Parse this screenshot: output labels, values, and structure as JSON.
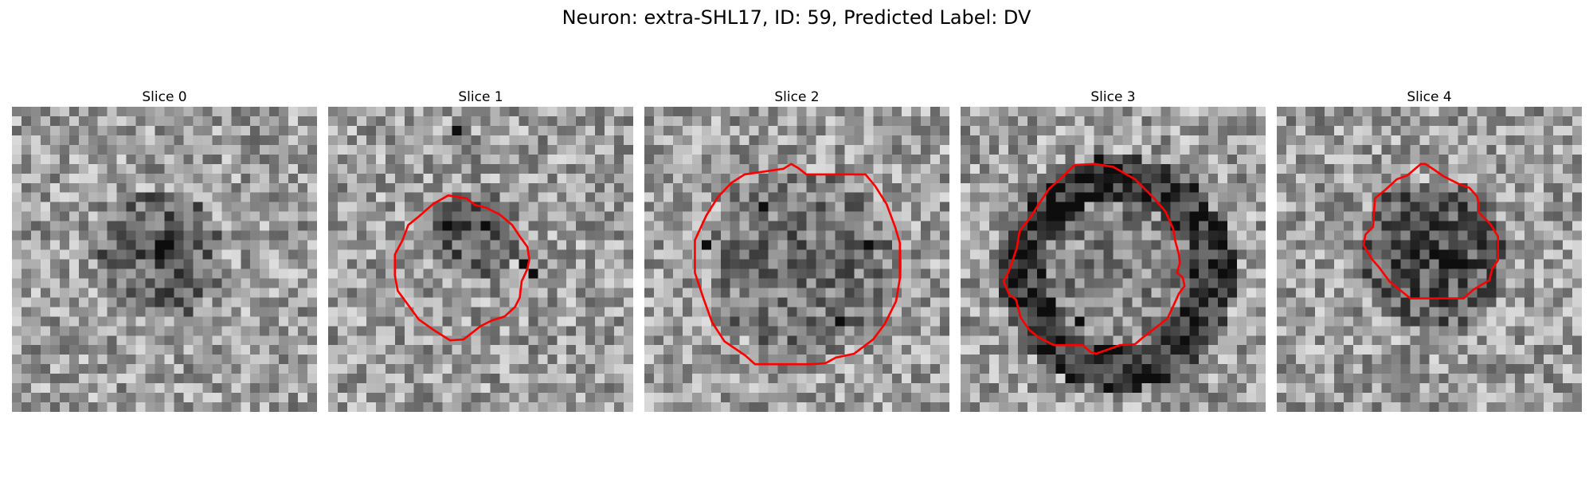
{
  "figure": {
    "title": "Neuron: extra-SHL17, ID: 59, Predicted Label: DV"
  },
  "grid_size": 32,
  "contour_color": "#ff0000",
  "panels": [
    {
      "title": "Slice 0",
      "seed": 11,
      "blob": {
        "cx": 15,
        "cy": 15,
        "r": 7,
        "depth": 0.28,
        "ring": false
      },
      "dark_pixels": [
        [
          15,
          14
        ],
        [
          16,
          14
        ],
        [
          15,
          15
        ]
      ],
      "contour": []
    },
    {
      "title": "Slice 1",
      "seed": 23,
      "blob": {
        "cx": 15,
        "cy": 13,
        "r": 5,
        "depth": 0.28,
        "ring": false
      },
      "dark_pixels": [
        [
          21,
          17
        ],
        [
          20,
          16
        ],
        [
          16,
          12
        ],
        [
          13,
          2
        ],
        [
          12,
          12
        ]
      ],
      "contour": [
        [
          12.6,
          9.3
        ],
        [
          14.5,
          9.6
        ],
        [
          15.4,
          10.3
        ],
        [
          16.6,
          10.6
        ],
        [
          18.0,
          11.3
        ],
        [
          19.3,
          12.4
        ],
        [
          20.1,
          13.6
        ],
        [
          20.9,
          14.7
        ],
        [
          21.1,
          16.0
        ],
        [
          20.9,
          17.0
        ],
        [
          20.3,
          18.3
        ],
        [
          20.1,
          20.0
        ],
        [
          19.6,
          21.0
        ],
        [
          18.5,
          22.0
        ],
        [
          17.2,
          22.4
        ],
        [
          16.0,
          23.0
        ],
        [
          14.2,
          24.4
        ],
        [
          12.8,
          24.5
        ],
        [
          11.2,
          23.5
        ],
        [
          9.5,
          22.3
        ],
        [
          7.3,
          19.3
        ],
        [
          7.0,
          17.7
        ],
        [
          7.0,
          15.5
        ],
        [
          7.8,
          14.0
        ],
        [
          8.4,
          12.4
        ],
        [
          9.4,
          11.6
        ],
        [
          11.0,
          10.2
        ]
      ]
    },
    {
      "title": "Slice 2",
      "seed": 37,
      "blob": {
        "cx": 16,
        "cy": 16,
        "r": 10,
        "depth": 0.2,
        "ring": false
      },
      "dark_pixels": [
        [
          23,
          14
        ],
        [
          6,
          14
        ],
        [
          12,
          10
        ],
        [
          20,
          22
        ]
      ],
      "contour": [
        [
          14.6,
          6.5
        ],
        [
          15.4,
          6.0
        ],
        [
          16.1,
          6.4
        ],
        [
          17.0,
          7.1
        ],
        [
          23.2,
          7.1
        ],
        [
          24.2,
          8.3
        ],
        [
          25.4,
          10.2
        ],
        [
          26.3,
          12.6
        ],
        [
          26.8,
          14.3
        ],
        [
          26.8,
          18.0
        ],
        [
          26.4,
          20.4
        ],
        [
          25.2,
          22.8
        ],
        [
          24.0,
          24.4
        ],
        [
          22.0,
          25.9
        ],
        [
          20.1,
          26.3
        ],
        [
          19.0,
          26.9
        ],
        [
          17.5,
          27.0
        ],
        [
          11.6,
          27.0
        ],
        [
          10.6,
          26.1
        ],
        [
          8.4,
          24.6
        ],
        [
          7.1,
          22.6
        ],
        [
          6.2,
          20.1
        ],
        [
          5.3,
          17.4
        ],
        [
          5.3,
          14.0
        ],
        [
          6.5,
          11.4
        ],
        [
          7.7,
          9.5
        ],
        [
          9.1,
          8.0
        ],
        [
          10.5,
          7.1
        ]
      ]
    },
    {
      "title": "Slice 3",
      "seed": 51,
      "blob": {
        "cx": 16,
        "cy": 17,
        "r": 10,
        "depth": 0.42,
        "ring": true
      },
      "dark_pixels": [
        [
          9,
          20
        ],
        [
          12,
          22
        ],
        [
          8,
          17
        ],
        [
          24,
          17
        ]
      ],
      "contour": [
        [
          12.0,
          6.1
        ],
        [
          14.1,
          6.0
        ],
        [
          16.0,
          6.3
        ],
        [
          17.4,
          7.1
        ],
        [
          18.3,
          7.6
        ],
        [
          19.0,
          8.3
        ],
        [
          20.3,
          9.6
        ],
        [
          21.5,
          11.0
        ],
        [
          22.3,
          12.8
        ],
        [
          22.5,
          14.0
        ],
        [
          22.9,
          15.5
        ],
        [
          23.0,
          16.4
        ],
        [
          22.7,
          17.4
        ],
        [
          23.3,
          17.9
        ],
        [
          23.5,
          18.8
        ],
        [
          22.9,
          19.6
        ],
        [
          22.4,
          20.7
        ],
        [
          21.7,
          22.2
        ],
        [
          20.3,
          23.3
        ],
        [
          19.0,
          24.3
        ],
        [
          18.3,
          24.9
        ],
        [
          16.7,
          25.0
        ],
        [
          15.9,
          25.3
        ],
        [
          14.2,
          25.9
        ],
        [
          13.6,
          25.7
        ],
        [
          12.8,
          25.0
        ],
        [
          9.8,
          25.0
        ],
        [
          9.0,
          24.6
        ],
        [
          8.2,
          24.2
        ],
        [
          7.2,
          23.4
        ],
        [
          6.3,
          22.1
        ],
        [
          5.8,
          20.2
        ],
        [
          5.1,
          19.7
        ],
        [
          4.5,
          18.3
        ],
        [
          5.0,
          17.4
        ],
        [
          5.5,
          16.0
        ],
        [
          5.9,
          14.8
        ],
        [
          6.2,
          13.0
        ],
        [
          7.4,
          11.5
        ],
        [
          8.2,
          10.2
        ],
        [
          9.3,
          8.6
        ],
        [
          10.4,
          7.6
        ]
      ]
    },
    {
      "title": "Slice 4",
      "seed": 67,
      "blob": {
        "cx": 16,
        "cy": 15,
        "r": 8,
        "depth": 0.35,
        "ring": false
      },
      "dark_pixels": [
        [
          19,
          16
        ],
        [
          18,
          16
        ],
        [
          16,
          15
        ]
      ],
      "contour": [
        [
          15.1,
          6.0
        ],
        [
          15.6,
          6.0
        ],
        [
          16.5,
          6.6
        ],
        [
          17.5,
          7.3
        ],
        [
          19.1,
          8.1
        ],
        [
          20.2,
          8.5
        ],
        [
          21.0,
          9.4
        ],
        [
          21.2,
          10.2
        ],
        [
          21.2,
          11.1
        ],
        [
          22.4,
          12.3
        ],
        [
          23.2,
          13.6
        ],
        [
          23.2,
          16.1
        ],
        [
          22.6,
          17.0
        ],
        [
          22.3,
          18.2
        ],
        [
          21.6,
          18.6
        ],
        [
          20.6,
          19.2
        ],
        [
          19.6,
          20.1
        ],
        [
          14.0,
          20.1
        ],
        [
          13.4,
          19.6
        ],
        [
          11.8,
          18.3
        ],
        [
          10.7,
          16.8
        ],
        [
          10.0,
          16.0
        ],
        [
          9.1,
          14.5
        ],
        [
          9.3,
          13.4
        ],
        [
          10.1,
          12.6
        ],
        [
          10.2,
          11.0
        ],
        [
          10.3,
          9.6
        ],
        [
          11.4,
          8.7
        ],
        [
          12.6,
          7.6
        ],
        [
          13.7,
          7.2
        ]
      ]
    }
  ]
}
